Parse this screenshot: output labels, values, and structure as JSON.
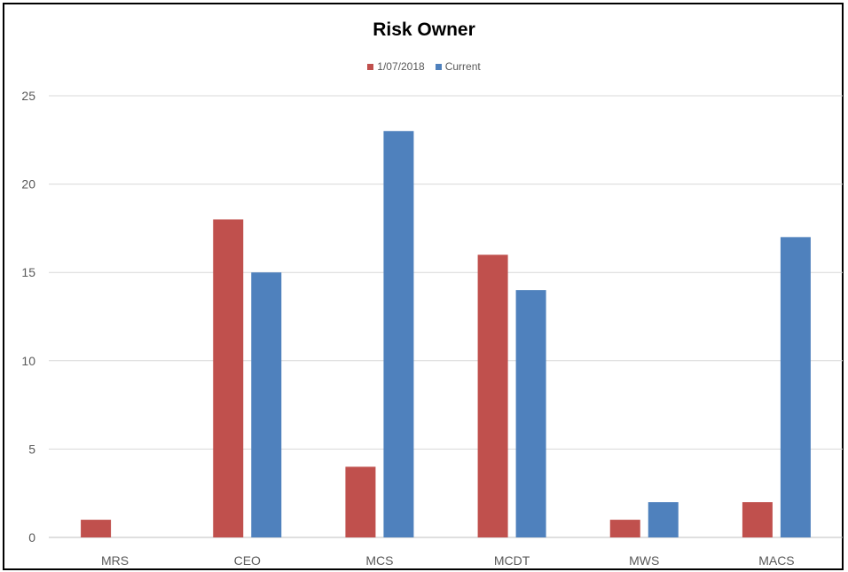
{
  "chart_data": {
    "type": "bar",
    "title": "Risk Owner",
    "xlabel": "",
    "ylabel": "",
    "ylim": [
      0,
      25
    ],
    "yticks": [
      0,
      5,
      10,
      15,
      20,
      25
    ],
    "grid": true,
    "legend_position": "top",
    "categories": [
      "MRS",
      "CEO",
      "MCS",
      "MCDT",
      "MWS",
      "MACS"
    ],
    "series": [
      {
        "name": "1/07/2018",
        "color": "#C0504D",
        "values": [
          1,
          18,
          4,
          16,
          1,
          2
        ]
      },
      {
        "name": "Current",
        "color": "#4F81BD",
        "values": [
          0,
          15,
          23,
          14,
          2,
          17
        ]
      }
    ]
  }
}
